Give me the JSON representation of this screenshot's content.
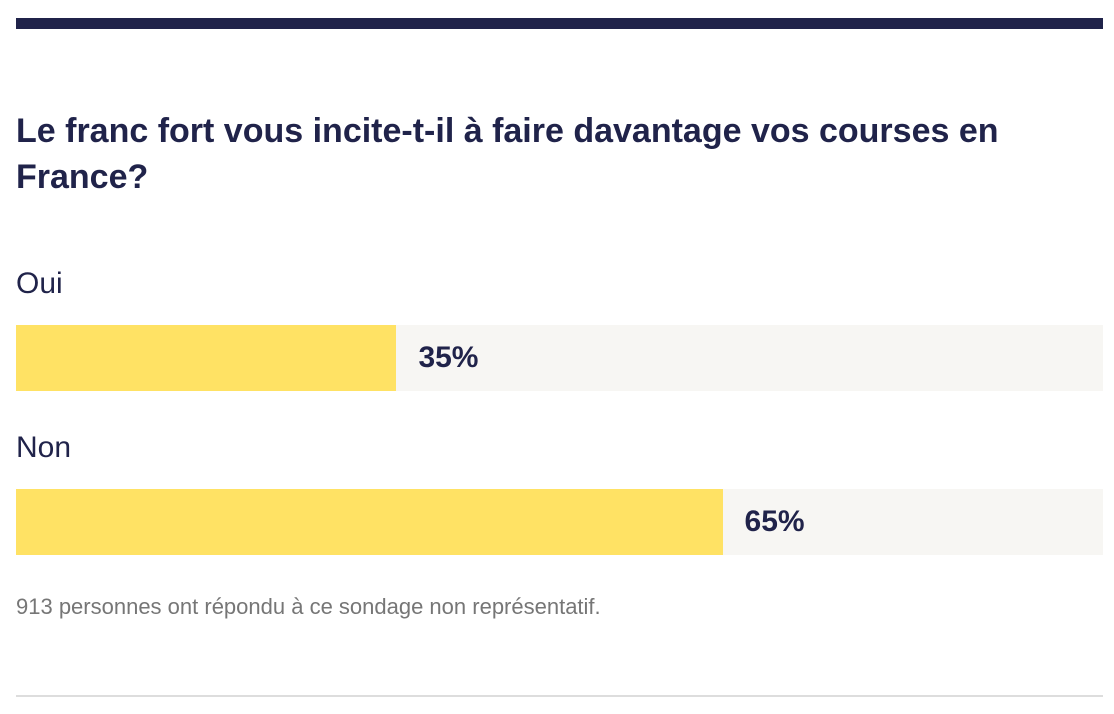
{
  "colors": {
    "accent": "#20234a",
    "bar": "#ffe264",
    "track": "#f7f6f3",
    "note": "#767676"
  },
  "chart_data": {
    "type": "bar",
    "orientation": "horizontal",
    "title": "Le franc fort vous incite-t-il à faire davantage vos courses en France?",
    "categories": [
      "Oui",
      "Non"
    ],
    "values": [
      35,
      65
    ],
    "value_labels": [
      "35%",
      "65%"
    ],
    "xlim": [
      0,
      100
    ],
    "note": "913 personnes ont répondu à ce sondage non représentatif."
  }
}
